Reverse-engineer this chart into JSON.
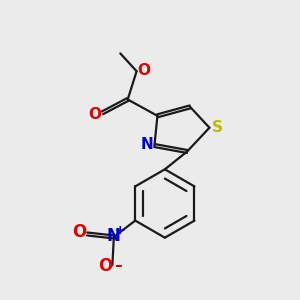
{
  "background_color": "#ebebeb",
  "bond_color": "#1a1a1a",
  "atom_colors": {
    "O": "#e00000",
    "N": "#0000dd",
    "S": "#bbbb00",
    "C": "#1a1a1a"
  },
  "figsize": [
    3.0,
    3.0
  ],
  "dpi": 100
}
